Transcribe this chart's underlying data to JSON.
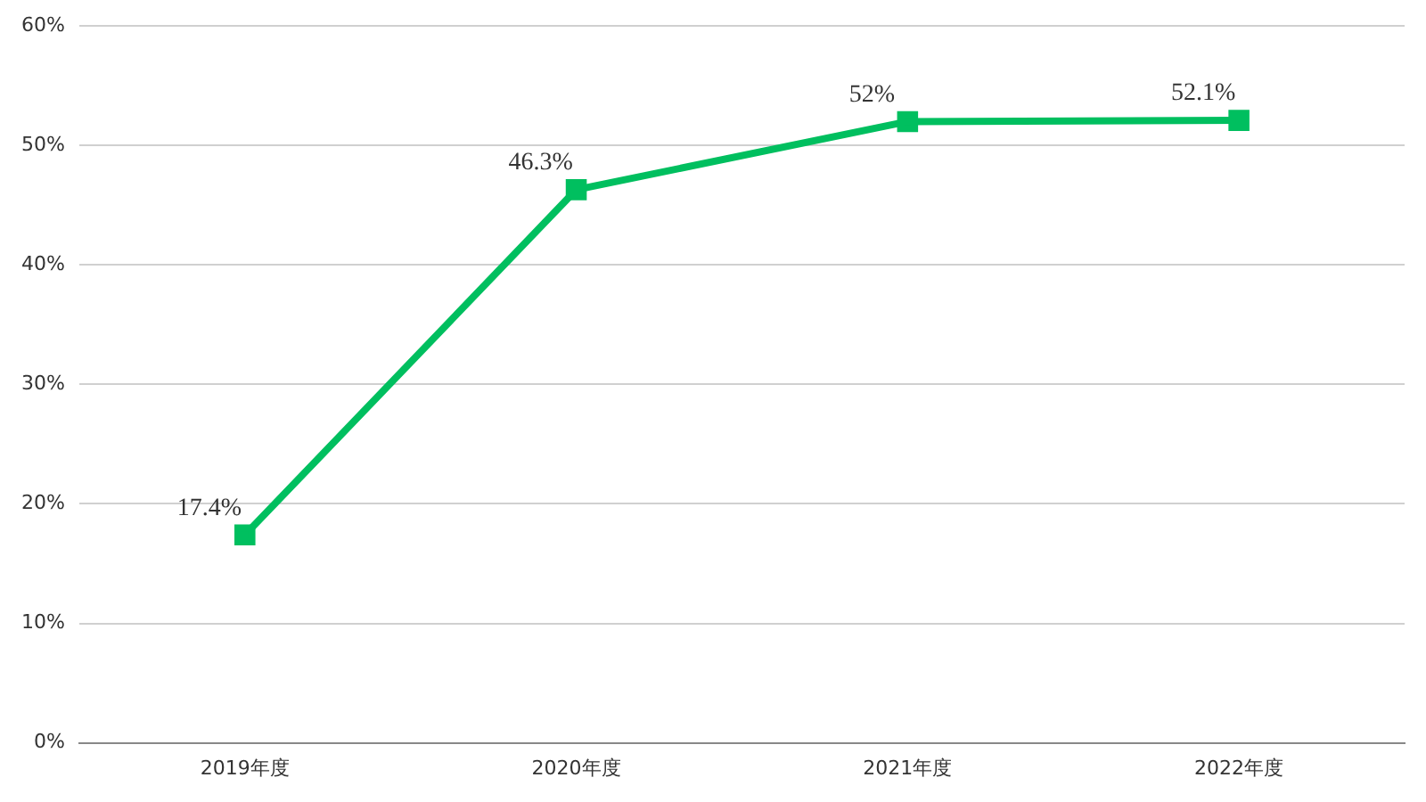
{
  "chart_data": {
    "type": "line",
    "categories": [
      "2019年度",
      "2020年度",
      "2021年度",
      "2022年度"
    ],
    "series": [
      {
        "color": "#00bf5f",
        "values": [
          17.4,
          46.3,
          52,
          52.1
        ],
        "value_labels": [
          "17.4%",
          "46.3%",
          "52%",
          "52.1%"
        ]
      }
    ],
    "ylim": [
      0,
      60
    ],
    "yticks": [
      {
        "value": 0,
        "label": "0%"
      },
      {
        "value": 10,
        "label": "10%"
      },
      {
        "value": 20,
        "label": "20%"
      },
      {
        "value": 30,
        "label": "30%"
      },
      {
        "value": 40,
        "label": "40%"
      },
      {
        "value": 50,
        "label": "50%"
      },
      {
        "value": 60,
        "label": "60%"
      }
    ],
    "grid": "y",
    "legend": false,
    "marker": "square",
    "line_style": "solid"
  }
}
